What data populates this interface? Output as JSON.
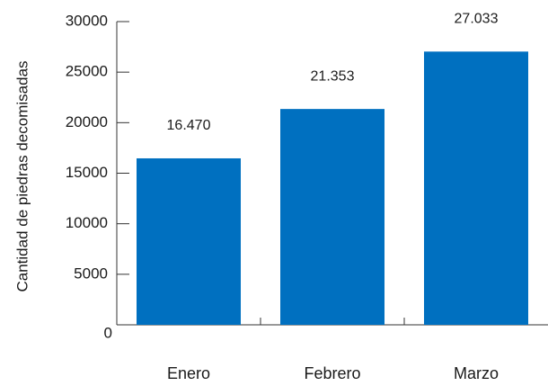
{
  "chart_data": {
    "type": "bar",
    "title": "",
    "xlabel": "",
    "ylabel": "Cantidad de piedras decomisadas",
    "categories": [
      "Enero",
      "Febrero",
      "Marzo"
    ],
    "values": [
      16470,
      21353,
      27033
    ],
    "data_labels": [
      "16.470",
      "21.353",
      "27.033"
    ],
    "ylim": [
      0,
      30000
    ],
    "yticks": [
      0,
      5000,
      10000,
      15000,
      20000,
      25000,
      30000
    ],
    "ytick_labels": [
      "0",
      "5000",
      "10000",
      "15000",
      "20000",
      "25000",
      "30000"
    ],
    "bar_color": "#0070c0",
    "grid": false,
    "legend": "none"
  }
}
